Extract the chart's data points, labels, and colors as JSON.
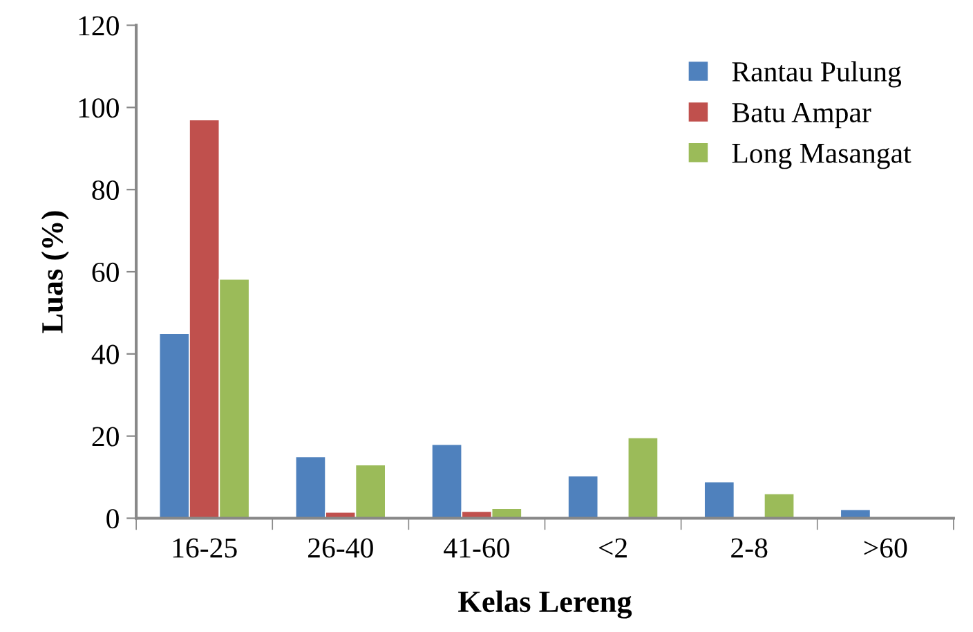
{
  "chart_data": {
    "type": "bar",
    "xlabel": "Kelas Lereng",
    "ylabel": "Luas (%)",
    "categories": [
      "16-25",
      "26-40",
      "41-60",
      "<2",
      "2-8",
      ">60"
    ],
    "series": [
      {
        "name": "Rantau Pulung",
        "color": "#4f81bd",
        "values": [
          45,
          15,
          18,
          10.3,
          8.9,
          2.1
        ]
      },
      {
        "name": "Batu Ampar",
        "color": "#c0504d",
        "values": [
          97,
          1.5,
          1.7,
          null,
          null,
          null
        ]
      },
      {
        "name": "Long Masangat",
        "color": "#9bbb59",
        "values": [
          58.2,
          13,
          2.4,
          19.6,
          6,
          null
        ]
      }
    ],
    "ylim": [
      0,
      120
    ],
    "yticks": [
      0,
      20,
      40,
      60,
      80,
      100,
      120
    ],
    "grid": false,
    "legend": "top right"
  }
}
